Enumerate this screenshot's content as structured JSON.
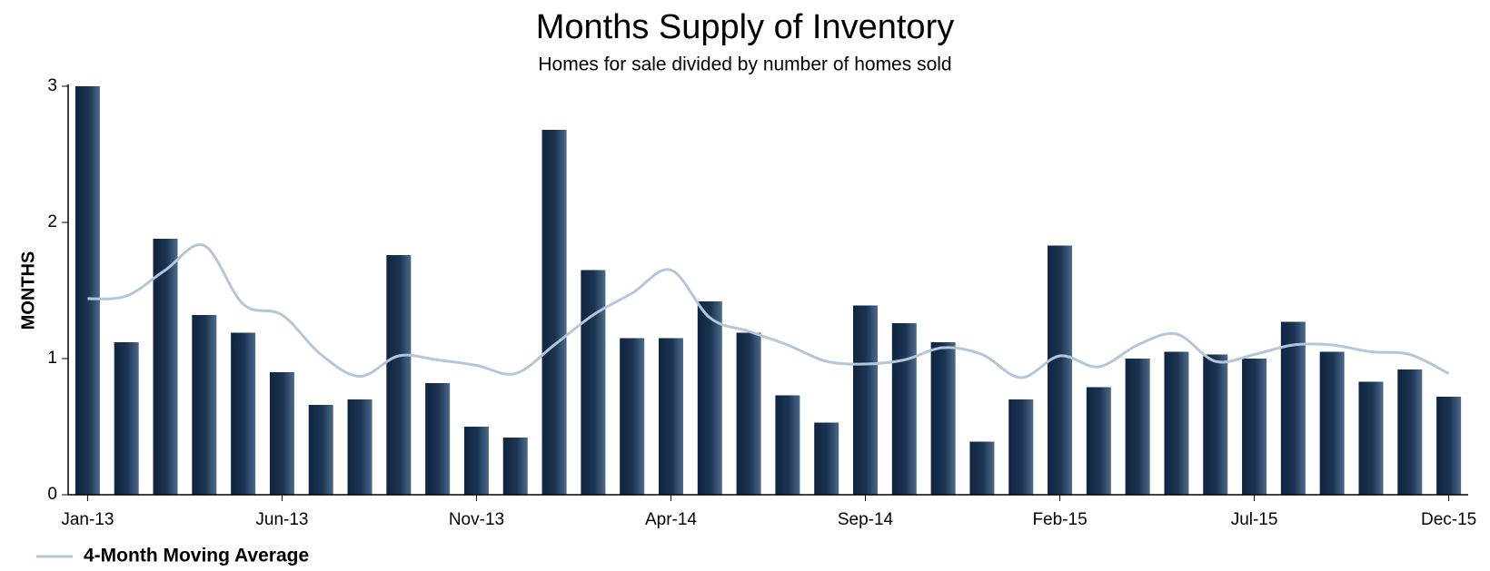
{
  "chart_data": {
    "type": "bar",
    "title": "Months Supply of Inventory",
    "subtitle": "Homes for sale divided by number of homes sold",
    "y_label": "MONTHS",
    "categories": [
      "Jan-13",
      null,
      null,
      null,
      null,
      "Jun-13",
      null,
      null,
      null,
      null,
      "Nov-13",
      null,
      null,
      null,
      null,
      "Apr-14",
      null,
      null,
      null,
      null,
      "Sep-14",
      null,
      null,
      null,
      null,
      "Feb-15",
      null,
      null,
      null,
      null,
      "Jul-15",
      null,
      null,
      null,
      null,
      "Dec-15"
    ],
    "values": [
      3.0,
      1.12,
      1.88,
      1.32,
      1.19,
      0.9,
      0.66,
      0.7,
      1.76,
      0.82,
      0.5,
      0.42,
      2.68,
      1.65,
      1.15,
      1.15,
      1.42,
      1.19,
      0.73,
      0.53,
      1.39,
      1.26,
      1.12,
      0.39,
      0.7,
      1.83,
      0.79,
      1.0,
      1.05,
      1.03,
      1.0,
      1.27,
      1.05,
      0.83,
      0.92,
      0.72
    ],
    "color": "#1c3553",
    "series": [
      {
        "name": "4-Month Moving Average",
        "color": "#b4c6da",
        "values": [
          1.44,
          1.46,
          1.65,
          1.83,
          1.4,
          1.32,
          1.03,
          0.87,
          1.02,
          0.99,
          0.95,
          0.89,
          1.1,
          1.32,
          1.48,
          1.65,
          1.3,
          1.2,
          1.1,
          0.98,
          0.96,
          0.99,
          1.08,
          1.03,
          0.86,
          1.02,
          0.94,
          1.1,
          1.18,
          0.98,
          1.03,
          1.1,
          1.1,
          1.05,
          1.03,
          0.89
        ]
      }
    ],
    "ylim": [
      0,
      3
    ],
    "yticks": [
      0,
      1,
      2,
      3
    ],
    "grid": false,
    "legend": "bottom-left"
  }
}
